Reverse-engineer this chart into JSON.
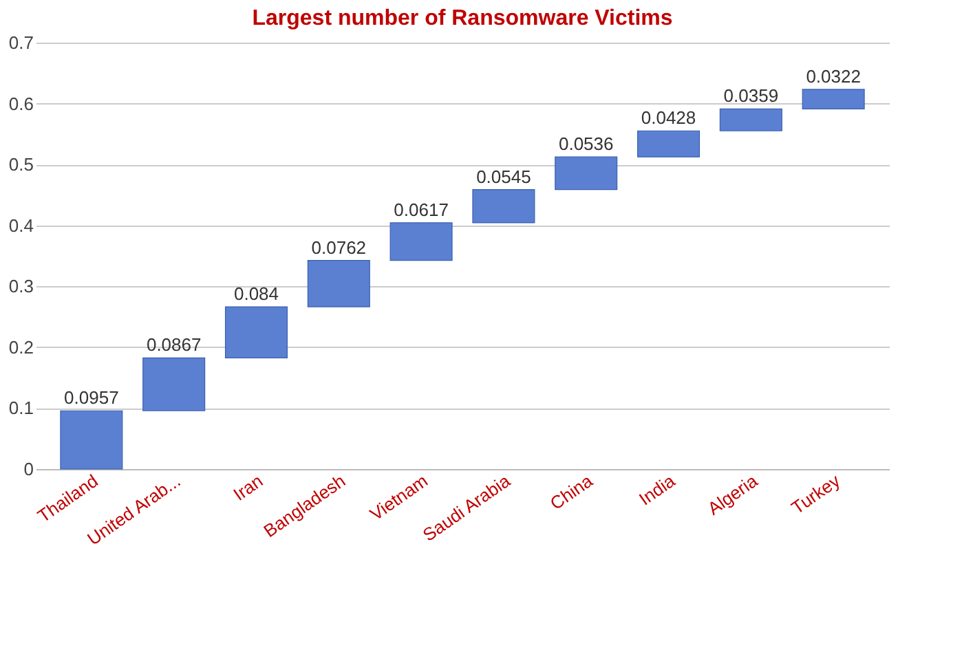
{
  "chart_data": {
    "type": "bar",
    "title": "Largest number of Ransomware Victims",
    "categories": [
      "Thailand",
      "United Arab...",
      "Iran",
      "Bangladesh",
      "Vietnam",
      "Saudi Arabia",
      "China",
      "India",
      "Algeria",
      "Turkey"
    ],
    "values": [
      0.0957,
      0.0867,
      0.084,
      0.0762,
      0.0617,
      0.0545,
      0.0536,
      0.0428,
      0.0359,
      0.0322
    ],
    "base": [
      0,
      0.0957,
      0.1824,
      0.2664,
      0.3426,
      0.4043,
      0.4588,
      0.5124,
      0.5552,
      0.5911
    ],
    "color": "#5b80d2",
    "ylim": [
      0,
      0.7
    ],
    "yticks": [
      0,
      0.1,
      0.2,
      0.3,
      0.4,
      0.5,
      0.6,
      0.7
    ],
    "grid": "y",
    "data_labels": true
  }
}
